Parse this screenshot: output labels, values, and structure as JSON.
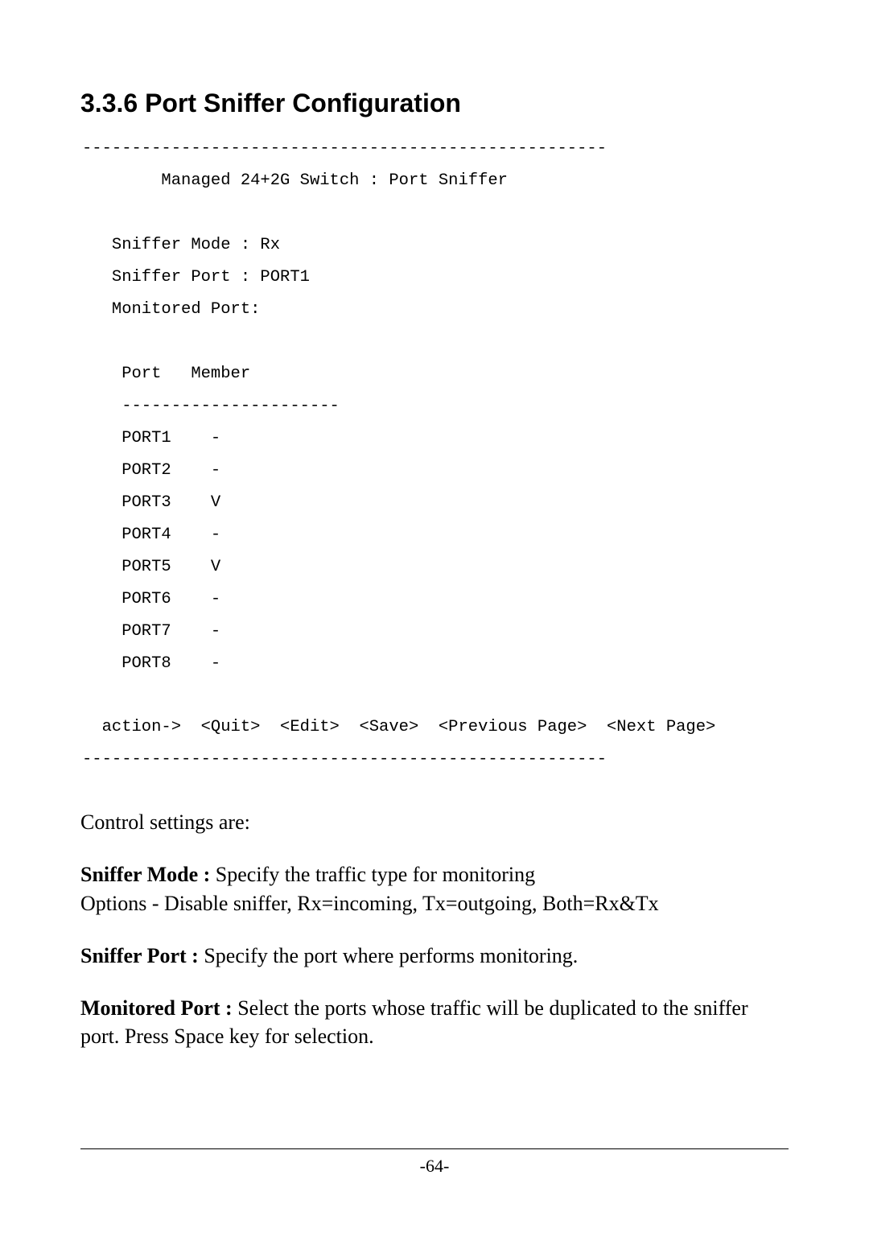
{
  "heading": "3.3.6 Port Sniffer Configuration",
  "terminal": {
    "hr": "-----------------------------------------------------",
    "title": "        Managed 24+2G Switch : Port Sniffer",
    "blank": "",
    "sniffer_mode_line": "   Sniffer Mode : Rx",
    "sniffer_port_line": "   Sniffer Port : PORT1",
    "monitored_port_line": "   Monitored Port:",
    "columns_line": "    Port   Member",
    "sub_hr": "    ----------------------",
    "rows": [
      "    PORT1    -",
      "    PORT2    -",
      "    PORT3    V",
      "    PORT4    -",
      "    PORT5    V",
      "    PORT6    -",
      "    PORT7    -",
      "    PORT8    -"
    ],
    "action_line": "  action->  <Quit>  <Edit>  <Save>  <Previous Page>  <Next Page>"
  },
  "intro": "Control settings are:",
  "settings": [
    {
      "label": "Sniffer Mode : ",
      "text": "Specify the traffic type for monitoring",
      "extra": "Options - Disable sniffer, Rx=incoming, Tx=outgoing, Both=Rx&Tx"
    },
    {
      "label": "Sniffer Port : ",
      "text": "Specify the port where performs monitoring.",
      "extra": ""
    },
    {
      "label": "Monitored Port : ",
      "text": "Select the ports whose traffic will be duplicated to the sniffer port. Press Space key for selection.",
      "extra": ""
    }
  ],
  "page_number": "-64-"
}
